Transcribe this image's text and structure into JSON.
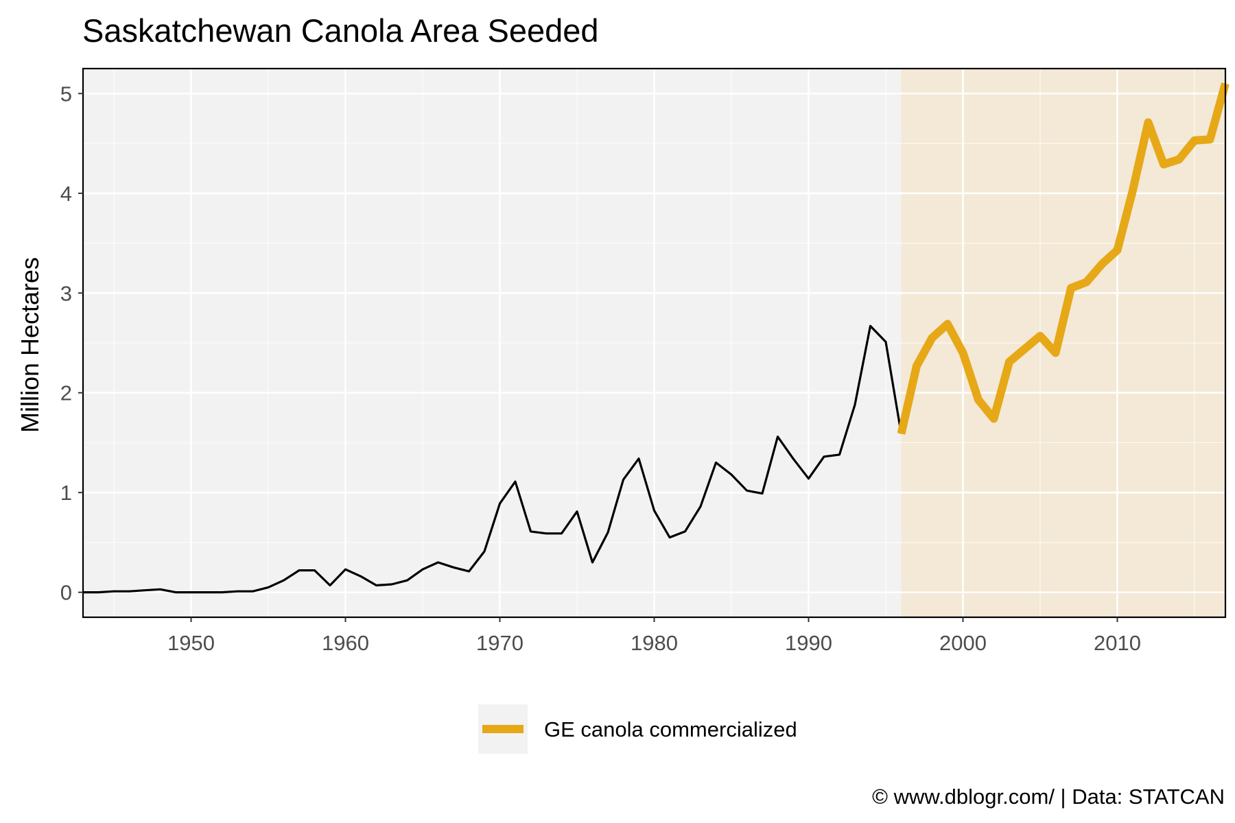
{
  "chart_data": {
    "type": "line",
    "title": "Saskatchewan Canola Area Seeded",
    "xlabel": "",
    "ylabel": "Million Hectares",
    "xlim": [
      1943,
      2017
    ],
    "ylim": [
      -0.25,
      5.25
    ],
    "x_ticks": [
      1950,
      1960,
      1970,
      1980,
      1990,
      2000,
      2010
    ],
    "y_ticks": [
      0,
      1,
      2,
      3,
      4,
      5
    ],
    "grid": true,
    "background_color": "#f2f2f2",
    "highlight_region": {
      "x_start": 1996,
      "x_end": 2017,
      "color": "#f3e9d6",
      "label": "GE canola commercialized"
    },
    "series": [
      {
        "color": "#000000",
        "x": [
          1943,
          1944,
          1945,
          1946,
          1947,
          1948,
          1949,
          1950,
          1951,
          1952,
          1953,
          1954,
          1955,
          1956,
          1957,
          1958,
          1959,
          1960,
          1961,
          1962,
          1963,
          1964,
          1965,
          1966,
          1967,
          1968,
          1969,
          1970,
          1971,
          1972,
          1973,
          1974,
          1975,
          1976,
          1977,
          1978,
          1979,
          1980,
          1981,
          1982,
          1983,
          1984,
          1985,
          1986,
          1987,
          1988,
          1989,
          1990,
          1991,
          1992,
          1993,
          1994,
          1995,
          1996
        ],
        "values": [
          0.0,
          0.0,
          0.01,
          0.01,
          0.02,
          0.03,
          0.0,
          0.0,
          0.0,
          0.0,
          0.01,
          0.01,
          0.05,
          0.12,
          0.22,
          0.22,
          0.07,
          0.23,
          0.16,
          0.07,
          0.08,
          0.12,
          0.23,
          0.3,
          0.25,
          0.21,
          0.41,
          0.89,
          1.11,
          0.61,
          0.59,
          0.59,
          0.81,
          0.3,
          0.6,
          1.13,
          1.34,
          0.82,
          0.55,
          0.61,
          0.86,
          1.3,
          1.18,
          1.02,
          0.99,
          1.56,
          1.34,
          1.14,
          1.36,
          1.38,
          1.88,
          2.67,
          2.51,
          1.59
        ]
      },
      {
        "name": "GE canola commercialized",
        "color": "#e6a817",
        "x": [
          1996,
          1997,
          1998,
          1999,
          2000,
          2001,
          2002,
          2003,
          2004,
          2005,
          2006,
          2007,
          2008,
          2009,
          2010,
          2011,
          2012,
          2013,
          2014,
          2015,
          2016,
          2017
        ],
        "values": [
          1.59,
          2.27,
          2.55,
          2.69,
          2.4,
          1.93,
          1.74,
          2.31,
          2.44,
          2.57,
          2.4,
          3.05,
          3.11,
          3.29,
          3.43,
          4.03,
          4.71,
          4.29,
          4.34,
          4.53,
          4.54,
          5.1
        ]
      }
    ],
    "legend_position": "bottom"
  },
  "caption": "© www.dblogr.com/  |  Data: STATCAN"
}
